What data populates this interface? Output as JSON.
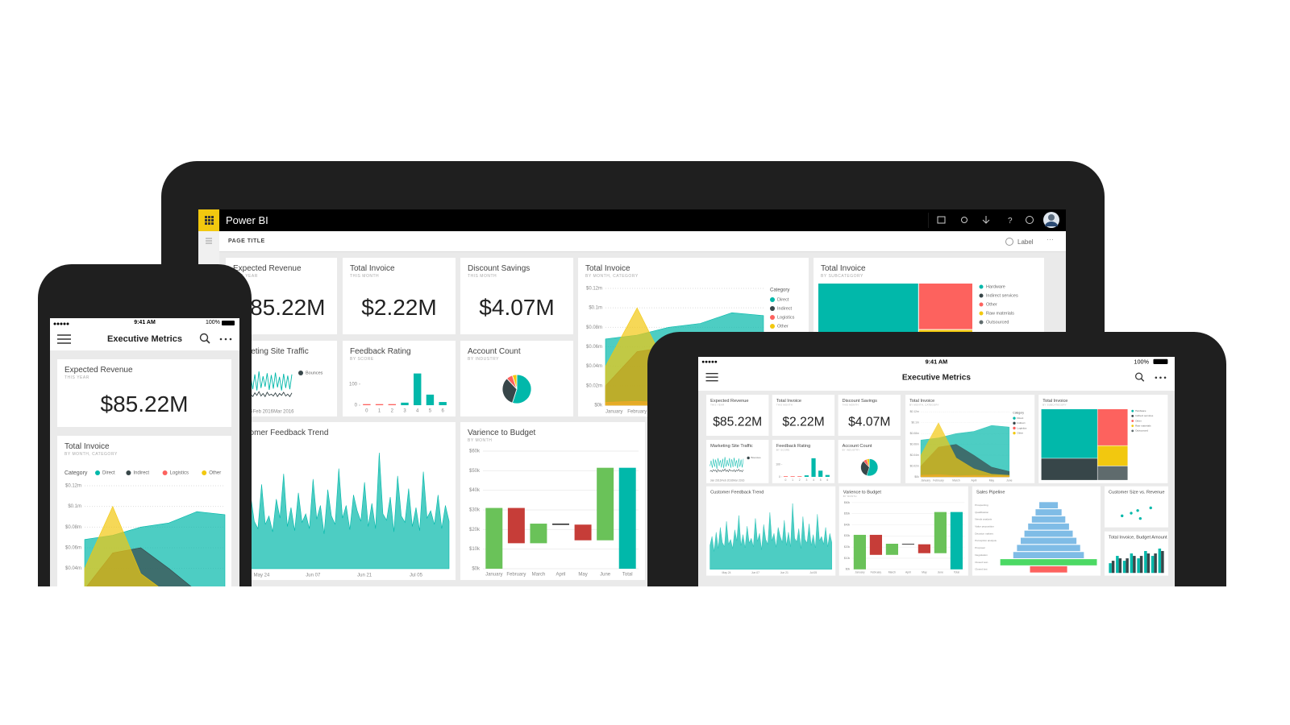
{
  "app": {
    "name": "Power BI",
    "page_title": "PAGE TITLE",
    "label": "Label"
  },
  "status_bar": {
    "time": "9:41 AM",
    "battery": "100%"
  },
  "report_title": "Executive Metrics",
  "kpis": {
    "expected_revenue": {
      "title": "Expected Revenue",
      "subtitle": "THIS YEAR",
      "value": "$85.22M"
    },
    "total_invoice": {
      "title": "Total Invoice",
      "subtitle": "THIS MONTH",
      "value": "$2.22M"
    },
    "discount_savings": {
      "title": "Discount Savings",
      "subtitle": "THIS MONTH",
      "value": "$4.07M"
    }
  },
  "charts": {
    "invoice_category": {
      "type": "area",
      "title": "Total Invoice",
      "subtitle": "BY MONTH, CATEGORY",
      "legend_title": "Category",
      "categories": [
        "January",
        "February",
        "March",
        "April",
        "May",
        "June"
      ],
      "ylim": [
        0,
        120000
      ],
      "yticks": [
        {
          "value": 0,
          "label": "$0k"
        },
        {
          "value": 20000,
          "label": "$0.02m"
        },
        {
          "value": 40000,
          "label": "$0.04m"
        },
        {
          "value": 60000,
          "label": "$0.06m"
        },
        {
          "value": 80000,
          "label": "$0.08m"
        },
        {
          "value": 100000,
          "label": "$0.1m"
        },
        {
          "value": 120000,
          "label": "$0.12m"
        }
      ],
      "series": [
        {
          "name": "Direct",
          "color": "#01b8aa",
          "values": [
            68000,
            72000,
            80000,
            84000,
            95000,
            92000
          ]
        },
        {
          "name": "Indirect",
          "color": "#374649",
          "values": [
            20000,
            55000,
            60000,
            40000,
            18000,
            10000
          ]
        },
        {
          "name": "Logistics",
          "color": "#fd625e",
          "values": [
            3000,
            4000,
            2000,
            3000,
            2000,
            2000
          ]
        },
        {
          "name": "Other",
          "color": "#f2c80f",
          "values": [
            40000,
            100000,
            35000,
            15000,
            5000,
            3000
          ]
        }
      ]
    },
    "treemap": {
      "type": "treemap",
      "title": "Total Invoice",
      "subtitle": "BY SUBCATEGORY",
      "categories": [
        "Hardware",
        "Indirect services",
        "Other",
        "Raw materials",
        "Outsourced"
      ],
      "values": [
        45,
        20,
        18,
        10,
        7
      ],
      "colors": [
        "#01b8aa",
        "#374649",
        "#fd625e",
        "#f2c80f",
        "#5f6b6d"
      ]
    },
    "site_traffic": {
      "type": "line",
      "title": "Marketing Site Traffic",
      "categories": [
        null,
        null,
        null,
        null,
        null,
        "Jan 2016",
        null,
        null,
        null,
        null,
        null,
        null,
        null,
        null,
        null,
        "Feb 2016",
        null,
        null,
        null,
        null,
        null,
        null,
        null,
        null,
        null,
        "Mar 2016",
        null,
        null,
        null,
        null
      ],
      "series": [
        {
          "color": "#01b8aa",
          "values": [
            30,
            45,
            25,
            50,
            28,
            48,
            22,
            52,
            30,
            46,
            26,
            50,
            24,
            55,
            28,
            47,
            30,
            52,
            25,
            49,
            27,
            53,
            29,
            46,
            24,
            51,
            28,
            48,
            26,
            50
          ]
        },
        {
          "name": "Bounces",
          "color": "#374649",
          "values": [
            15,
            18,
            14,
            20,
            16,
            19,
            13,
            21,
            15,
            18,
            14,
            20,
            16,
            22,
            15,
            19,
            14,
            21,
            16,
            18,
            15,
            20,
            14,
            19,
            16,
            21,
            15,
            18,
            14,
            20
          ]
        }
      ]
    },
    "feedback_rating": {
      "type": "bar",
      "title": "Feedback Rating",
      "subtitle": "BY SCORE",
      "categories": [
        "0",
        "1",
        "2",
        "3",
        "4",
        "5",
        "6"
      ],
      "values": [
        5,
        5,
        5,
        12,
        150,
        50,
        15
      ],
      "colors": [
        "#fd625e",
        "#fd625e",
        "#fd625e",
        "#01b8aa",
        "#01b8aa",
        "#01b8aa",
        "#01b8aa"
      ],
      "ylim": [
        0,
        160
      ],
      "yticks": [
        0,
        100
      ]
    },
    "account_count": {
      "type": "pie",
      "title": "Account Count",
      "subtitle": "BY INDUSTRY",
      "values": [
        55,
        33,
        7,
        5
      ],
      "colors": [
        "#01b8aa",
        "#374649",
        "#fd625e",
        "#f2c80f"
      ]
    },
    "feedback_trend": {
      "type": "area",
      "title": "Customer Feedback Trend",
      "categories": [
        null,
        null,
        null,
        null,
        null,
        null,
        null,
        null,
        "May 24",
        null,
        null,
        null,
        null,
        null,
        null,
        null,
        null,
        null,
        null,
        null,
        null,
        null,
        "Jun 07",
        null,
        null,
        null,
        null,
        null,
        null,
        null,
        null,
        null,
        null,
        null,
        null,
        null,
        "Jun 21",
        null,
        null,
        null,
        null,
        null,
        null,
        null,
        null,
        null,
        null,
        null,
        null,
        null,
        "Jul 05",
        null,
        null,
        null,
        null,
        null,
        null,
        null,
        null,
        null
      ],
      "series": [
        {
          "color": "#01b8aa",
          "values": [
            40,
            55,
            30,
            62,
            35,
            70,
            45,
            38,
            80,
            42,
            50,
            35,
            66,
            48,
            90,
            40,
            58,
            36,
            72,
            44,
            52,
            38,
            85,
            47,
            60,
            33,
            75,
            50,
            42,
            95,
            48,
            60,
            37,
            70,
            55,
            45,
            82,
            40,
            62,
            38,
            110,
            52,
            46,
            68,
            35,
            88,
            50,
            44,
            76,
            40,
            58,
            36,
            92,
            48,
            55,
            42,
            70,
            38,
            60,
            45
          ]
        }
      ]
    },
    "variance_budget": {
      "type": "waterfall",
      "title": "Varience to Budget",
      "subtitle": "BY MONTH",
      "categories": [
        "January",
        "February",
        "March",
        "April",
        "May",
        "June"
      ],
      "values": [
        31000,
        -18000,
        10000,
        -500,
        -8000,
        37000
      ],
      "colors": [
        "#6ac259",
        "#c63d38",
        "#6ac259",
        "#222222",
        "#c63d38",
        "#6ac259"
      ],
      "total": {
        "label": "Total",
        "value": 51500,
        "color": "#01b8aa"
      },
      "ylim": [
        0,
        60000
      ],
      "yticks": [
        {
          "value": 0,
          "label": "$0k"
        },
        {
          "value": 10000,
          "label": "$10k"
        },
        {
          "value": 20000,
          "label": "$20k"
        },
        {
          "value": 30000,
          "label": "$30k"
        },
        {
          "value": 40000,
          "label": "$40k"
        },
        {
          "value": 50000,
          "label": "$50k"
        },
        {
          "value": 60000,
          "label": "$60k"
        }
      ]
    },
    "sales_pipeline": {
      "type": "funnel",
      "title": "Sales Pipeline",
      "categories": [
        "Prospecting",
        "Qualification",
        "Needs analysis",
        "Value proposition",
        "Decision makers",
        "Perception analysis",
        "Proposal",
        "Negotiation",
        "Closed won",
        "Closed lost"
      ],
      "values": [
        25,
        35,
        45,
        55,
        65,
        75,
        85,
        95,
        130,
        50
      ],
      "colors": [
        "#7fbce6",
        "#7fbce6",
        "#7fbce6",
        "#7fbce6",
        "#7fbce6",
        "#7fbce6",
        "#7fbce6",
        "#7fbce6",
        "#4cd964",
        "#fd625e"
      ]
    },
    "customer_size": {
      "type": "scatter",
      "title": "Customer Size vs. Revenue",
      "color": "#01b8aa",
      "x": [
        48,
        55,
        60,
        62,
        70
      ],
      "y": [
        35,
        40,
        45,
        30,
        50
      ]
    },
    "budget_amount": {
      "type": "bar",
      "title": "Total Invoice, Budget Amount",
      "series": [
        {
          "color": "#01b8aa",
          "values": [
            20,
            35,
            25,
            40,
            30,
            45,
            35,
            50
          ]
        },
        {
          "color": "#374649",
          "values": [
            25,
            30,
            30,
            35,
            35,
            40,
            40,
            45
          ]
        }
      ]
    }
  }
}
